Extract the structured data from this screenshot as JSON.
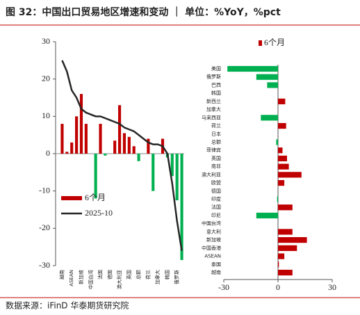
{
  "title": "图 32：中国出口贸易地区增速和变动 ｜ 单位：%YoY，%pct",
  "source": "数据来源：iFinD   华泰期货研究院",
  "chart_data": [
    {
      "type": "combo",
      "categories": [
        "越南",
        null,
        "ASEAN",
        null,
        "新加坡",
        null,
        "中国台湾",
        null,
        "法国",
        null,
        "德国",
        null,
        "澳大利亚",
        null,
        "英国",
        null,
        "总额",
        null,
        "荷兰",
        null,
        "加拿大",
        null,
        "韩国",
        null,
        "俄罗斯",
        null
      ],
      "series": [
        {
          "name": "6个月",
          "kind": "bar",
          "color": "#c00000",
          "negative_color": "#00b050",
          "values": [
            8,
            0.5,
            3,
            10,
            16,
            8,
            0,
            -12,
            8,
            -0.5,
            0,
            3.5,
            13,
            5.5,
            4.5,
            2,
            -2,
            0,
            4,
            -10,
            0,
            4,
            -1,
            -6,
            -12.5,
            -28.5
          ]
        },
        {
          "name": "2025-10",
          "kind": "line",
          "color": "#262626",
          "values": [
            25,
            22,
            17,
            15,
            12,
            11,
            10.5,
            10,
            10,
            9.5,
            9,
            8.5,
            8,
            7,
            6.5,
            6,
            5,
            4,
            3,
            2.5,
            2.5,
            2,
            0,
            -8,
            -18,
            -26
          ]
        }
      ],
      "ylim": [
        -30,
        30
      ],
      "yticks": [
        -30,
        -20,
        -10,
        0,
        10,
        20,
        30
      ]
    },
    {
      "type": "barh",
      "categories": [
        "美国",
        "俄罗斯",
        "巴西",
        "韩国",
        "新西兰",
        "加拿大",
        "马来西亚",
        "荷兰",
        "日本",
        "总额",
        "菲律宾",
        "英国",
        "南非",
        "澳大利亚",
        "欧盟",
        "德国",
        "印度",
        "法国",
        "印尼",
        "中国台湾",
        "意大利",
        "新加坡",
        "中国香港",
        "ASEAN",
        "泰国",
        "越南"
      ],
      "series": [
        {
          "name": "6个月",
          "color": "#c00000",
          "negative_color": "#00b050",
          "values": [
            -28,
            -12,
            -6,
            0,
            4,
            0,
            -9.5,
            4.5,
            0,
            -1,
            2.5,
            5,
            6,
            13,
            3.5,
            0,
            -0.5,
            8,
            -12,
            0,
            8,
            16,
            10.5,
            3.5,
            0.5,
            8
          ]
        }
      ],
      "xlim": [
        -30,
        30
      ],
      "xticks": [
        -30,
        0,
        30
      ]
    }
  ]
}
